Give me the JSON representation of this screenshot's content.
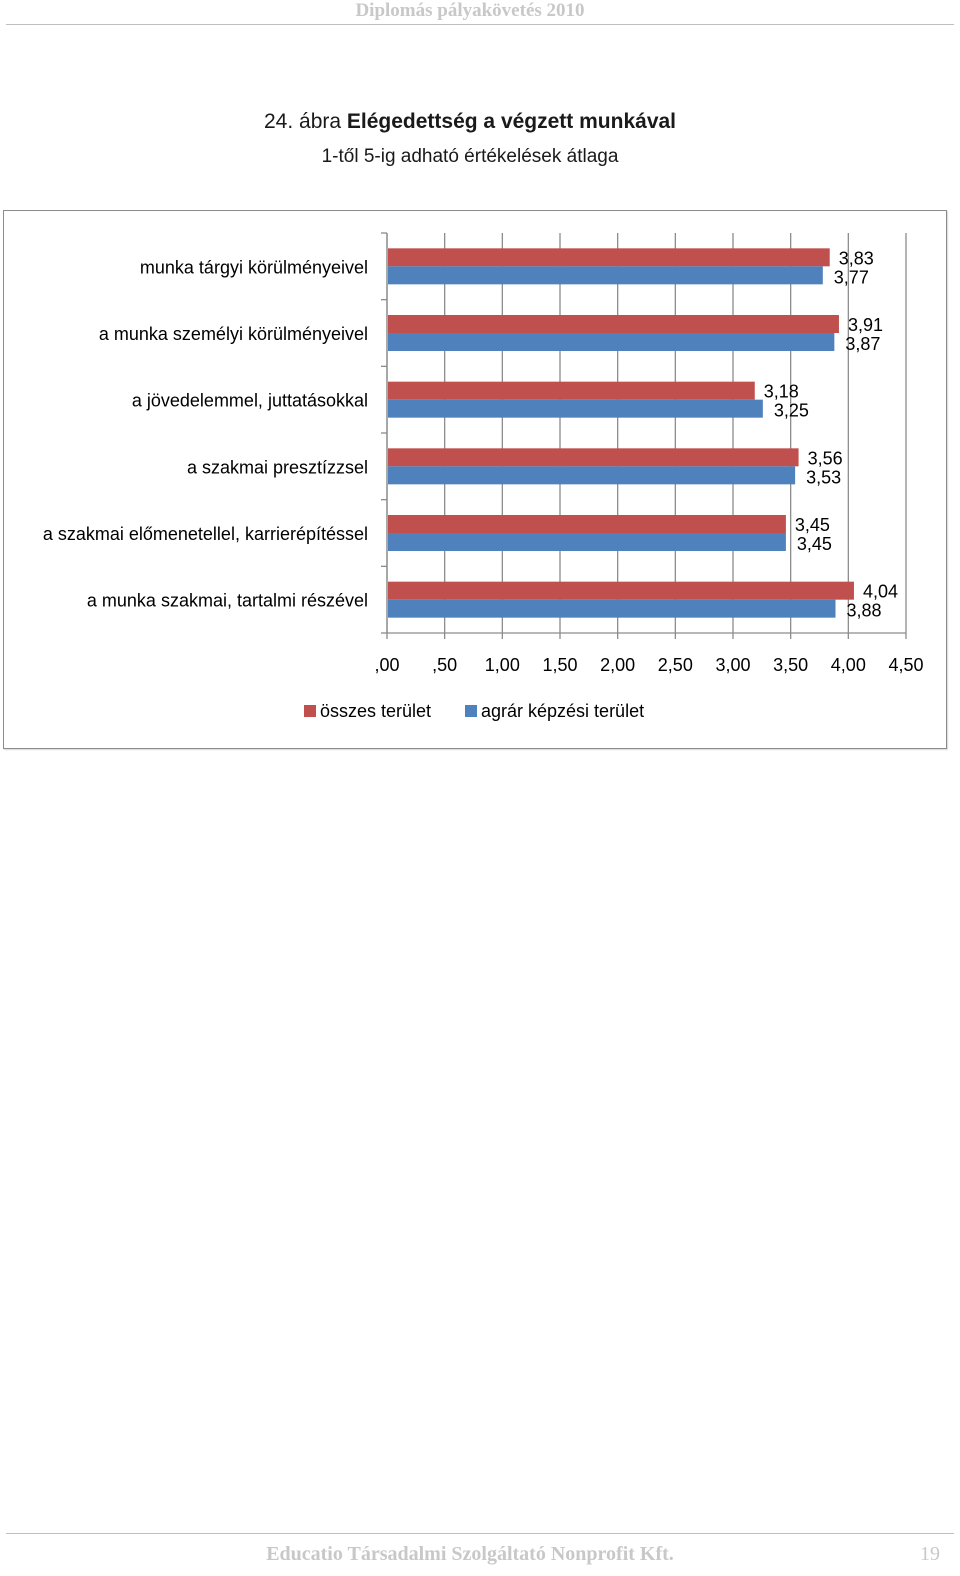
{
  "header": {
    "title": "Diplomás pályakövetés 2010"
  },
  "figure": {
    "number": "24. ábra",
    "title": "Elégedettség a végzett munkával",
    "subtitle": "1-től 5-ig adható értékelések átlaga"
  },
  "chart_data": {
    "type": "bar",
    "orientation": "horizontal",
    "categories": [
      "munka tárgyi körülményeivel",
      "a munka személyi körülményeivel",
      "a jövedelemmel, juttatásokkal",
      "a szakmai presztízzsel",
      "a szakmai előmenetellel, karrierépítéssel",
      "a munka szakmai, tartalmi részével"
    ],
    "series": [
      {
        "name": "összes terület",
        "color": "#c0504d",
        "values": [
          3.83,
          3.91,
          3.18,
          3.56,
          3.45,
          4.04
        ],
        "labels": [
          "3,83",
          "3,91",
          "3,18",
          "3,56",
          "3,45",
          "4,04"
        ]
      },
      {
        "name": "agrár képzési terület",
        "color": "#4f81bd",
        "values": [
          3.77,
          3.87,
          3.25,
          3.53,
          3.45,
          3.88
        ],
        "labels": [
          "3,77",
          "3,87",
          "3,25",
          "3,53",
          "3,45",
          "3,88"
        ]
      }
    ],
    "xlim": [
      0,
      4.5
    ],
    "xticks": [
      ",00",
      ",50",
      "1,00",
      "1,50",
      "2,00",
      "2,50",
      "3,00",
      "3,50",
      "4,00",
      "4,50"
    ],
    "grid": true,
    "legend": "bottom"
  },
  "footer": {
    "text": "Educatio Társadalmi Szolgáltató Nonprofit Kft.",
    "page": "19"
  }
}
